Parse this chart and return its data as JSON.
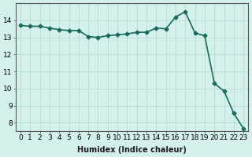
{
  "xlabel": "Humidex (Indice chaleur)",
  "x": [
    0,
    1,
    2,
    3,
    4,
    5,
    6,
    7,
    8,
    9,
    10,
    11,
    12,
    13,
    14,
    15,
    16,
    17,
    18,
    19,
    20,
    21,
    22,
    23
  ],
  "y": [
    13.7,
    13.65,
    13.65,
    13.55,
    13.45,
    13.4,
    13.4,
    13.05,
    13.0,
    13.1,
    13.15,
    13.2,
    13.3,
    13.3,
    13.55,
    13.5,
    14.2,
    14.5,
    13.25,
    13.1,
    10.3,
    9.85,
    8.55,
    7.65
  ],
  "line_color": "#1a6b5a",
  "bg_color": "#d4f0ed",
  "grid_color": "#b0d8d4",
  "ylim": [
    7.5,
    15.0
  ],
  "yticks": [
    8,
    9,
    10,
    11,
    12,
    13,
    14
  ],
  "label_fontsize": 7,
  "tick_fontsize": 6.5,
  "marker": "D",
  "marker_size": 2.5,
  "linewidth": 1.2
}
